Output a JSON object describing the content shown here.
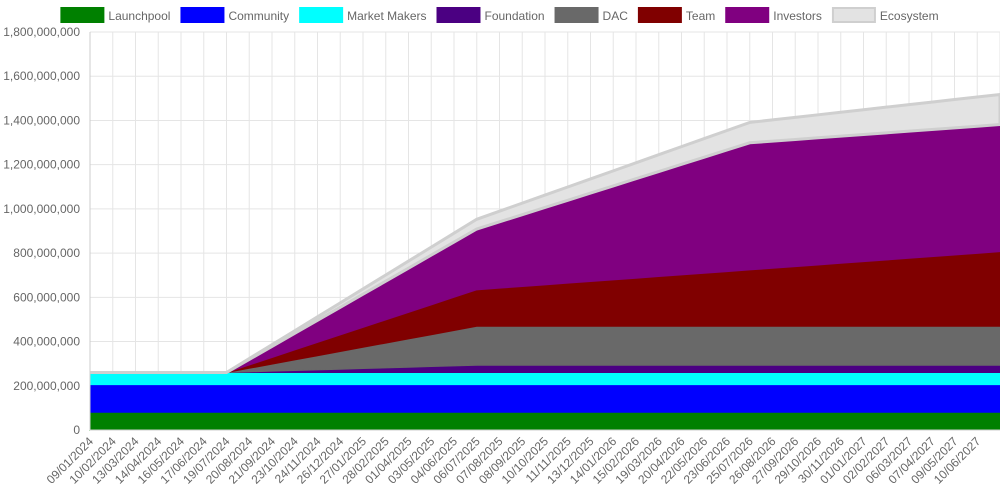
{
  "chart_data": {
    "type": "stacked_area",
    "categories": [
      "09/01/2024",
      "10/02/2024",
      "13/03/2024",
      "14/04/2024",
      "16/05/2024",
      "17/06/2024",
      "19/07/2024",
      "20/08/2024",
      "21/09/2024",
      "23/10/2024",
      "24/11/2024",
      "26/12/2024",
      "27/01/2025",
      "28/02/2025",
      "01/04/2025",
      "03/05/2025",
      "04/06/2025",
      "06/07/2025",
      "07/08/2025",
      "08/09/2025",
      "10/10/2025",
      "11/11/2025",
      "13/12/2025",
      "14/01/2026",
      "15/02/2026",
      "19/03/2026",
      "20/04/2026",
      "22/05/2026",
      "23/06/2026",
      "25/07/2026",
      "26/08/2026",
      "27/09/2026",
      "29/10/2026",
      "30/11/2026",
      "01/01/2027",
      "02/02/2027",
      "06/03/2027",
      "07/04/2027",
      "09/05/2027",
      "10/06/2027",
      null
    ],
    "series": [
      {
        "name": "Launchpool",
        "color": "#008000",
        "values": [
          80000000,
          80000000,
          80000000,
          80000000,
          80000000,
          80000000,
          80000000,
          80000000,
          80000000,
          80000000,
          80000000,
          80000000,
          80000000,
          80000000,
          80000000,
          80000000,
          80000000,
          80000000,
          80000000,
          80000000,
          80000000,
          80000000,
          80000000,
          80000000,
          80000000,
          80000000,
          80000000,
          80000000,
          80000000,
          80000000,
          80000000,
          80000000,
          80000000,
          80000000,
          80000000,
          80000000,
          80000000,
          80000000,
          80000000,
          80000000,
          80000000
        ]
      },
      {
        "name": "Community",
        "color": "#0000ff",
        "values": [
          125000000,
          125000000,
          125000000,
          125000000,
          125000000,
          125000000,
          125000000,
          125000000,
          125000000,
          125000000,
          125000000,
          125000000,
          125000000,
          125000000,
          125000000,
          125000000,
          125000000,
          125000000,
          125000000,
          125000000,
          125000000,
          125000000,
          125000000,
          125000000,
          125000000,
          125000000,
          125000000,
          125000000,
          125000000,
          125000000,
          125000000,
          125000000,
          125000000,
          125000000,
          125000000,
          125000000,
          125000000,
          125000000,
          125000000,
          125000000,
          125000000
        ]
      },
      {
        "name": "Market Makers",
        "color": "#00ffff",
        "values": [
          55000000,
          55000000,
          55000000,
          55000000,
          55000000,
          55000000,
          55000000,
          55000000,
          55000000,
          55000000,
          55000000,
          55000000,
          55000000,
          55000000,
          55000000,
          55000000,
          55000000,
          55000000,
          55000000,
          55000000,
          55000000,
          55000000,
          55000000,
          55000000,
          55000000,
          55000000,
          55000000,
          55000000,
          55000000,
          55000000,
          55000000,
          55000000,
          55000000,
          55000000,
          55000000,
          55000000,
          55000000,
          55000000,
          55000000,
          55000000,
          55000000
        ]
      },
      {
        "name": "Foundation",
        "color": "#4b0082",
        "values": [
          0,
          0,
          0,
          0,
          0,
          0,
          0,
          3000000,
          6000000,
          9000000,
          12000000,
          15000000,
          18000000,
          21000000,
          24000000,
          27000000,
          30000000,
          33000000,
          33000000,
          33000000,
          33000000,
          33000000,
          33000000,
          33000000,
          33000000,
          33000000,
          33000000,
          33000000,
          33000000,
          33000000,
          33000000,
          33000000,
          33000000,
          33000000,
          33000000,
          33000000,
          33000000,
          33000000,
          33000000,
          33000000,
          33000000
        ]
      },
      {
        "name": "DAC",
        "color": "#696969",
        "values": [
          0,
          0,
          0,
          0,
          0,
          0,
          0,
          16000000,
          32000000,
          48000000,
          64000000,
          80000000,
          96000000,
          112000000,
          128000000,
          144000000,
          160000000,
          176000000,
          176000000,
          176000000,
          176000000,
          176000000,
          176000000,
          176000000,
          176000000,
          176000000,
          176000000,
          176000000,
          176000000,
          176000000,
          176000000,
          176000000,
          176000000,
          176000000,
          176000000,
          176000000,
          176000000,
          176000000,
          176000000,
          176000000,
          176000000
        ]
      },
      {
        "name": "Team",
        "color": "#800000",
        "values": [
          0,
          0,
          0,
          0,
          0,
          0,
          0,
          15000000,
          30000000,
          45000000,
          60000000,
          75000000,
          90000000,
          105000000,
          120000000,
          135000000,
          150000000,
          165000000,
          172500000,
          180000000,
          187500000,
          195000000,
          202500000,
          210000000,
          217500000,
          225000000,
          232500000,
          240000000,
          247500000,
          255000000,
          262500000,
          270000000,
          277500000,
          285000000,
          292500000,
          300000000,
          307500000,
          315000000,
          322500000,
          330000000,
          337500000
        ]
      },
      {
        "name": "Investors",
        "color": "#800080",
        "values": [
          0,
          0,
          0,
          0,
          0,
          0,
          0,
          25000000,
          50000000,
          75000000,
          100000000,
          125000000,
          150000000,
          175000000,
          200000000,
          225000000,
          250000000,
          275000000,
          300000000,
          325000000,
          350000000,
          375000000,
          400000000,
          425000000,
          450000000,
          475000000,
          500000000,
          525000000,
          550000000,
          575000000,
          575000000,
          575000000,
          575000000,
          575000000,
          575000000,
          575000000,
          575000000,
          575000000,
          575000000,
          575000000,
          575000000
        ]
      },
      {
        "name": "Ecosystem",
        "color": "#e3e3e3",
        "values": [
          0,
          0,
          0,
          0,
          0,
          0,
          0,
          4000000,
          8000000,
          12000000,
          16000000,
          20000000,
          24000000,
          28000000,
          32000000,
          36000000,
          40000000,
          44000000,
          48000000,
          52000000,
          56000000,
          60000000,
          64000000,
          68000000,
          72000000,
          76000000,
          80000000,
          84000000,
          88000000,
          92000000,
          96000000,
          100000000,
          104000000,
          108000000,
          112000000,
          116000000,
          120000000,
          124000000,
          128000000,
          132000000,
          136000000
        ]
      }
    ],
    "ylim": [
      0,
      1800000000
    ],
    "yticks": [
      0,
      {
        "value": 200000000,
        "label": "200,000,000"
      },
      {
        "value": 400000000,
        "label": "400,000,000"
      },
      {
        "value": 600000000,
        "label": "600,000,000"
      },
      {
        "value": 800000000,
        "label": "800,000,000"
      },
      {
        "value": 1000000000,
        "label": "1,000,000,000"
      },
      {
        "value": 1200000000,
        "label": "1,200,000,000"
      },
      {
        "value": 1400000000,
        "label": "1,400,000,000"
      },
      {
        "value": 1600000000,
        "label": "1,600,000,000"
      },
      {
        "value": 1800000000,
        "label": "1,800,000,000"
      }
    ],
    "grid": true,
    "legend": "top"
  }
}
